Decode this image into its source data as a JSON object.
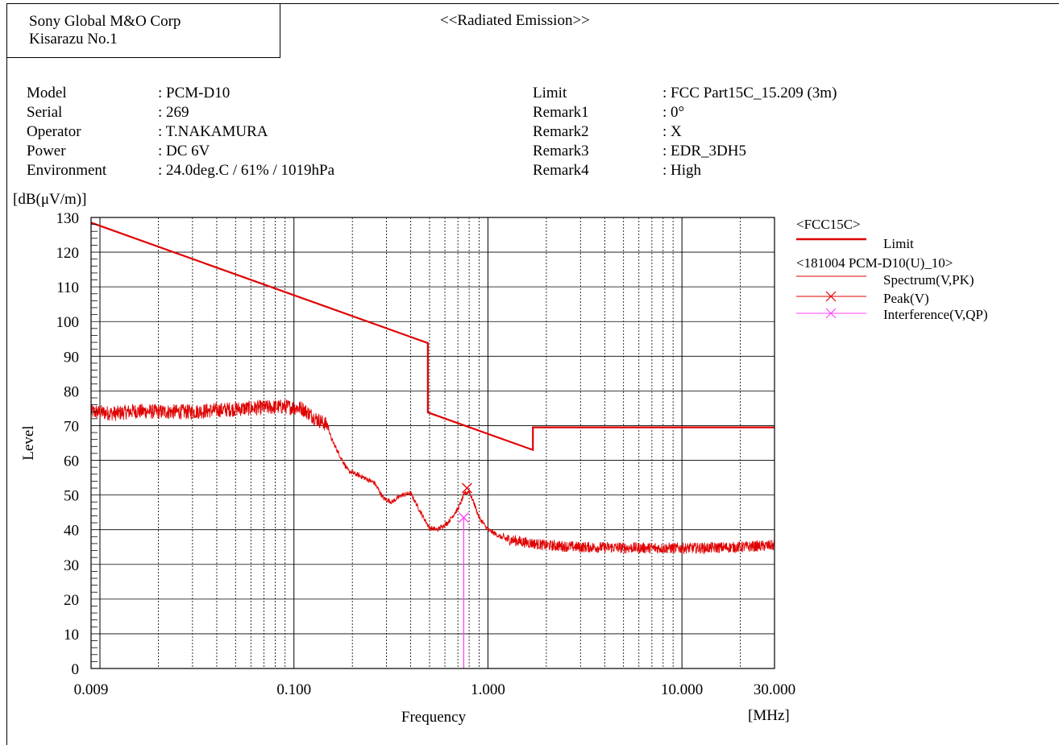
{
  "header": {
    "company_line1": "Sony Global M&O Corp",
    "company_line2": "Kisarazu No.1",
    "report_title": "<<Radiated Emission>>"
  },
  "info_left": [
    {
      "label": "Model",
      "value": ": PCM-D10"
    },
    {
      "label": "Serial",
      "value": ": 269"
    },
    {
      "label": "Operator",
      "value": ": T.NAKAMURA"
    },
    {
      "label": "Power",
      "value": ": DC 6V"
    },
    {
      "label": "Environment",
      "value": ": 24.0deg.C / 61% / 1019hPa"
    }
  ],
  "info_right": [
    {
      "label": "Limit",
      "value": ": FCC Part15C_15.209 (3m)"
    },
    {
      "label": "Remark1",
      "value": ": 0°"
    },
    {
      "label": "Remark2",
      "value": ": X"
    },
    {
      "label": "Remark3",
      "value": ": EDR_3DH5"
    },
    {
      "label": "Remark4",
      "value": ": High"
    }
  ],
  "chart_data": {
    "type": "line",
    "ylabel": "Level",
    "yunit": "[dB(μV/m)]",
    "xlabel": "Frequency",
    "xunit": "[MHz]",
    "xscale": "log",
    "xlim": [
      0.009,
      30
    ],
    "ylim": [
      0,
      130
    ],
    "yticks": [
      0,
      10,
      20,
      30,
      40,
      50,
      60,
      70,
      80,
      90,
      100,
      110,
      120,
      130
    ],
    "xtick_labels": [
      {
        "value": 0.009,
        "label": "0.009"
      },
      {
        "value": 0.1,
        "label": "0.100"
      },
      {
        "value": 1,
        "label": "1.000"
      },
      {
        "value": 10,
        "label": "10.000"
      },
      {
        "value": 30,
        "label": "30.000"
      }
    ],
    "grid": true,
    "legend_position": "right",
    "legend": {
      "group1": "<FCC15C>",
      "limit_label": "Limit",
      "group2": "<181004 PCM-D10(U)_10>",
      "spectrum_label": "Spectrum(V,PK)",
      "peak_label": "Peak(V)",
      "interference_label": "Interference(V,QP)"
    },
    "colors": {
      "limit": "#e00000",
      "spectrum": "#e00000",
      "peak": "#e00000",
      "interference": "#ff44ff"
    },
    "series": [
      {
        "name": "Limit",
        "points": [
          [
            0.009,
            128.5
          ],
          [
            0.49,
            93.8
          ],
          [
            0.49,
            73.8
          ],
          [
            1.705,
            63.0
          ],
          [
            1.705,
            69.5
          ],
          [
            30,
            69.5
          ]
        ]
      },
      {
        "name": "Spectrum(V,PK)",
        "points": [
          [
            0.009,
            74
          ],
          [
            0.012,
            73.5
          ],
          [
            0.015,
            74.2
          ],
          [
            0.02,
            74
          ],
          [
            0.03,
            74
          ],
          [
            0.05,
            74.8
          ],
          [
            0.07,
            75.2
          ],
          [
            0.09,
            75.5
          ],
          [
            0.11,
            75
          ],
          [
            0.13,
            72
          ],
          [
            0.15,
            70
          ],
          [
            0.155,
            66.5
          ],
          [
            0.17,
            62
          ],
          [
            0.19,
            57
          ],
          [
            0.22,
            55.5
          ],
          [
            0.26,
            53.5
          ],
          [
            0.29,
            49
          ],
          [
            0.32,
            48
          ],
          [
            0.36,
            50
          ],
          [
            0.4,
            50.5
          ],
          [
            0.45,
            45
          ],
          [
            0.5,
            40.5
          ],
          [
            0.55,
            40
          ],
          [
            0.62,
            42
          ],
          [
            0.7,
            46
          ],
          [
            0.76,
            50.5
          ],
          [
            0.8,
            51
          ],
          [
            0.85,
            47.5
          ],
          [
            0.9,
            43.5
          ],
          [
            1.0,
            40
          ],
          [
            1.2,
            37.5
          ],
          [
            1.5,
            36.5
          ],
          [
            2.0,
            35.5
          ],
          [
            3,
            35
          ],
          [
            5,
            34.8
          ],
          [
            8,
            34.7
          ],
          [
            12,
            34.7
          ],
          [
            20,
            35
          ],
          [
            30,
            35.5
          ]
        ]
      }
    ],
    "peak_markers": [
      {
        "x": 0.78,
        "y": 52.0
      }
    ],
    "interference_markers": [
      {
        "x": 0.75,
        "y": 43.5
      }
    ]
  }
}
